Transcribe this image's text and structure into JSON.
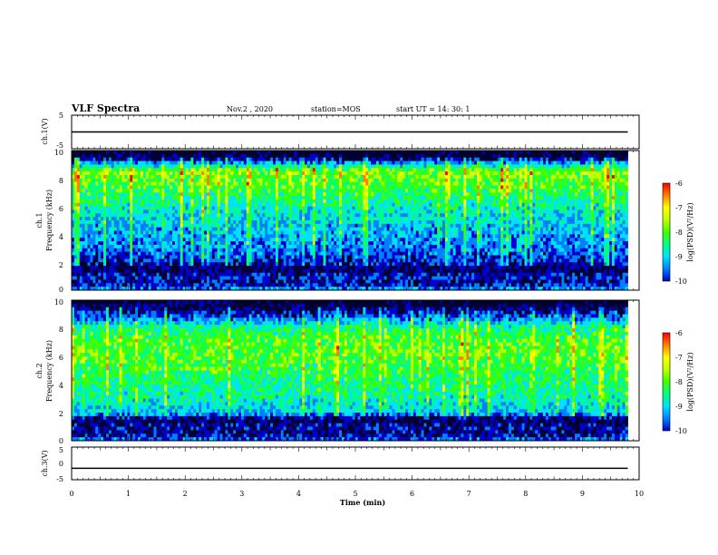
{
  "header": {
    "title": "VLF Spectra",
    "date": "Nov.2 , 2020",
    "station": "station=MOS",
    "start_ut": "start UT = 14: 30: 1"
  },
  "chart_data": [
    {
      "type": "line",
      "panel": "ch1-waveform",
      "ylabel": "ch.1(V)",
      "ylim": [
        -5,
        5
      ],
      "y_ticks": [
        "5",
        "-5"
      ],
      "xlim": [
        0,
        10
      ],
      "x": [
        0,
        9.8
      ],
      "y": [
        0,
        0
      ]
    },
    {
      "type": "heatmap",
      "panel": "ch1-spectrogram",
      "ylabel": [
        "ch.1",
        "Frequency (kHz)"
      ],
      "ylim": [
        0,
        10
      ],
      "y_ticks": [
        "0",
        "2",
        "4",
        "6",
        "8",
        "10"
      ],
      "xlim": [
        0,
        10
      ],
      "data_xmax": 9.8,
      "colorbar": {
        "label": "log(PSD)(V²/Hz)",
        "range": [
          -10,
          -6
        ],
        "ticks": [
          "-6",
          "-7",
          "-8",
          "-9",
          "-10"
        ]
      },
      "profile": {
        "freq_khz": [
          0,
          0.5,
          1,
          1.5,
          2,
          3,
          4,
          5,
          6,
          7,
          8,
          8.5,
          9,
          9.5,
          10
        ],
        "mean_log_psd": [
          -8.6,
          -9.5,
          -9.2,
          -9.8,
          -9.3,
          -8.9,
          -8.7,
          -8.5,
          -8.2,
          -7.8,
          -7.5,
          -7.3,
          -8.5,
          -9.8,
          -10
        ]
      }
    },
    {
      "type": "heatmap",
      "panel": "ch2-spectrogram",
      "ylabel": [
        "ch.2",
        "Frequency (kHz)"
      ],
      "ylim": [
        0,
        10
      ],
      "y_ticks": [
        "0",
        "2",
        "4",
        "6",
        "8",
        "10"
      ],
      "xlim": [
        0,
        10
      ],
      "data_xmax": 9.8,
      "colorbar": {
        "label": "log(PSD)(V²/Hz)",
        "range": [
          -10,
          -6
        ],
        "ticks": [
          "-6",
          "-7",
          "-8",
          "-9",
          "-10"
        ]
      },
      "profile": {
        "freq_khz": [
          0,
          0.5,
          1,
          1.5,
          2,
          3,
          4,
          5,
          6,
          7,
          8,
          8.5,
          9,
          9.5,
          10
        ],
        "mean_log_psd": [
          -8.8,
          -9.6,
          -9.4,
          -9.8,
          -8.6,
          -8.2,
          -8.0,
          -7.8,
          -7.6,
          -7.6,
          -8.0,
          -8.6,
          -9.3,
          -9.8,
          -10
        ]
      }
    },
    {
      "type": "line",
      "panel": "ch3-waveform",
      "ylabel": "ch.3(V)",
      "ylim": [
        -5,
        5
      ],
      "y_ticks": [
        "5",
        "0",
        "-5"
      ],
      "xlim": [
        0,
        10
      ],
      "x": [
        0,
        9.8
      ],
      "y": [
        -1.5,
        -1.5
      ]
    }
  ],
  "x_axis": {
    "label": "Time (min)",
    "ticks": [
      "0",
      "1",
      "2",
      "3",
      "4",
      "5",
      "6",
      "7",
      "8",
      "9",
      "10"
    ]
  },
  "colors": {
    "axis": "#000000",
    "colormap": [
      "#000033",
      "#0000cc",
      "#0080ff",
      "#00e0ff",
      "#00ff80",
      "#40ff00",
      "#c0ff00",
      "#ffff00",
      "#ff8000",
      "#ff0000",
      "#ffffff"
    ]
  }
}
